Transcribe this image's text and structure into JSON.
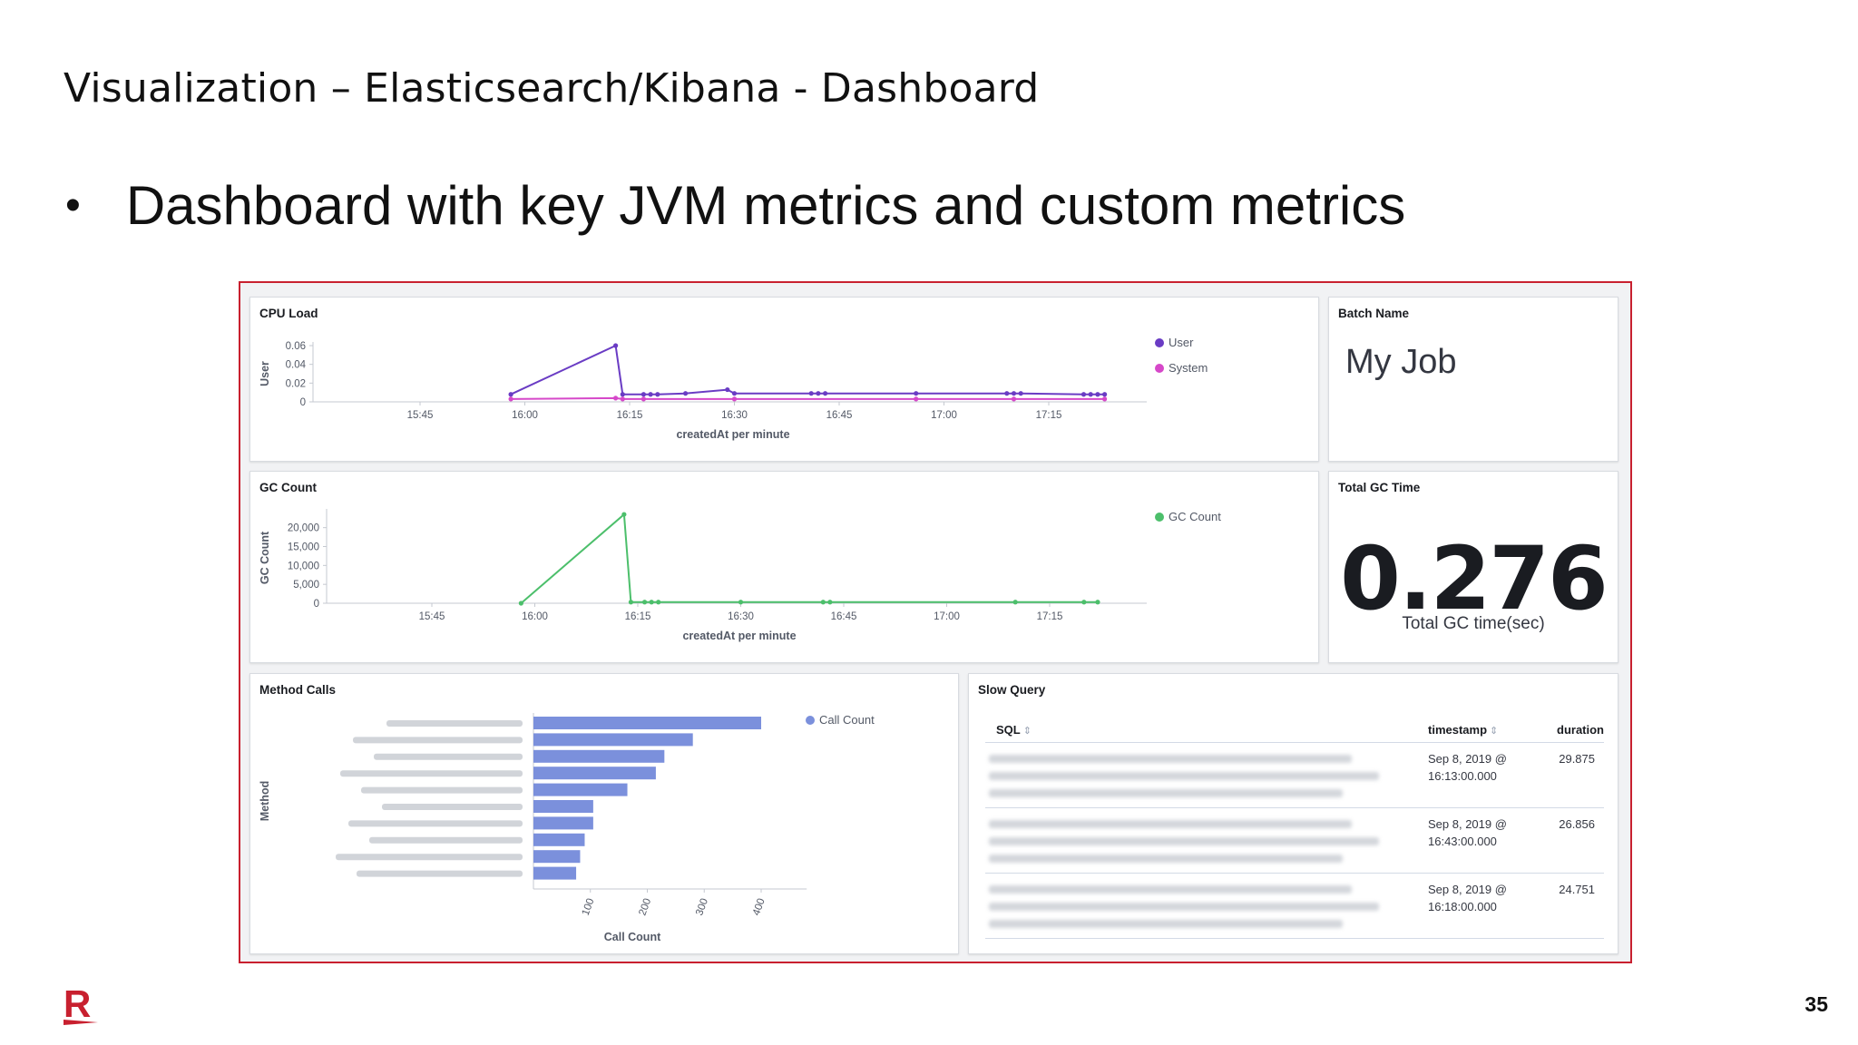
{
  "slide": {
    "title": "Visualization – Elasticsearch/Kibana - Dashboard",
    "bullet": "Dashboard with key JVM metrics and custom metrics",
    "page_number": "35",
    "logo_letter": "R",
    "accent_color": "#c8202f"
  },
  "panels": {
    "cpu_load": {
      "title": "CPU Load",
      "chart_data": {
        "type": "line",
        "title": "CPU Load",
        "xlabel": "createdAt per minute",
        "ylabel": "User",
        "x_ticks": [
          "15:45",
          "16:00",
          "16:15",
          "16:30",
          "16:45",
          "17:00",
          "17:15"
        ],
        "y_ticks": [
          "0",
          "0.02",
          "0.04",
          "0.06"
        ],
        "ylim": [
          0,
          0.06
        ],
        "legend_position": "top-right",
        "series": [
          {
            "name": "User",
            "color": "#6a3cc4",
            "x": [
              "15:58",
              "16:13",
              "16:14",
              "16:17",
              "16:18",
              "16:19",
              "16:23",
              "16:29",
              "16:30",
              "16:41",
              "16:42",
              "16:43",
              "16:56",
              "17:09",
              "17:10",
              "17:11",
              "17:20",
              "17:21",
              "17:22",
              "17:23"
            ],
            "y": [
              0.008,
              0.06,
              0.008,
              0.008,
              0.008,
              0.008,
              0.009,
              0.013,
              0.009,
              0.009,
              0.009,
              0.009,
              0.009,
              0.009,
              0.009,
              0.009,
              0.008,
              0.008,
              0.008,
              0.008
            ]
          },
          {
            "name": "System",
            "color": "#d648c9",
            "x": [
              "15:58",
              "16:13",
              "16:14",
              "16:17",
              "16:30",
              "16:56",
              "17:10",
              "17:23"
            ],
            "y": [
              0.003,
              0.004,
              0.003,
              0.003,
              0.003,
              0.003,
              0.003,
              0.003
            ]
          }
        ]
      }
    },
    "batch_name": {
      "title": "Batch Name",
      "value": "My Job"
    },
    "gc_count": {
      "title": "GC Count",
      "chart_data": {
        "type": "line",
        "title": "GC Count",
        "xlabel": "createdAt per minute",
        "ylabel": "GC Count",
        "x_ticks": [
          "15:45",
          "16:00",
          "16:15",
          "16:30",
          "16:45",
          "17:00",
          "17:15"
        ],
        "y_ticks": [
          "0",
          "5,000",
          "10,000",
          "15,000",
          "20,000"
        ],
        "ylim": [
          0,
          24000
        ],
        "legend_position": "top-right",
        "series": [
          {
            "name": "GC Count",
            "color": "#4cbf6b",
            "x": [
              "15:58",
              "16:13",
              "16:14",
              "16:16",
              "16:17",
              "16:18",
              "16:30",
              "16:42",
              "16:43",
              "17:10",
              "17:20",
              "17:22"
            ],
            "y": [
              0,
              23500,
              300,
              300,
              300,
              300,
              300,
              300,
              300,
              300,
              300,
              300
            ]
          }
        ]
      }
    },
    "total_gc_time": {
      "title": "Total GC Time",
      "value": "0.276",
      "label": "Total GC time(sec)"
    },
    "method_calls": {
      "title": "Method Calls",
      "chart_data": {
        "type": "bar",
        "orientation": "horizontal",
        "title": "Method Calls",
        "xlabel": "Call Count",
        "ylabel": "Method",
        "x_ticks": [
          "100",
          "200",
          "300",
          "400"
        ],
        "xlim": [
          0,
          480
        ],
        "legend_position": "top-right",
        "series": [
          {
            "name": "Call Count",
            "color": "#7b90dc",
            "values": [
              400,
              280,
              230,
              215,
              165,
              105,
              105,
              90,
              82,
              75
            ]
          }
        ]
      }
    },
    "slow_query": {
      "title": "Slow Query",
      "columns": {
        "sql": "SQL",
        "timestamp": "timestamp",
        "duration": "duration"
      },
      "rows": [
        {
          "timestamp_date": "Sep 8, 2019 @",
          "timestamp_time": "16:13:00.000",
          "duration": "29.875"
        },
        {
          "timestamp_date": "Sep 8, 2019 @",
          "timestamp_time": "16:43:00.000",
          "duration": "26.856"
        },
        {
          "timestamp_date": "Sep 8, 2019 @",
          "timestamp_time": "16:18:00.000",
          "duration": "24.751"
        }
      ]
    }
  }
}
